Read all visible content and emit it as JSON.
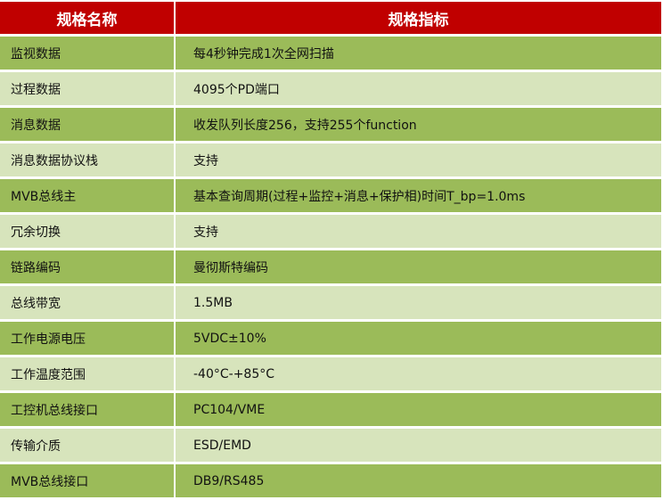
{
  "header": {
    "col1": "规格名称",
    "col2": "规格指标"
  },
  "colors": {
    "header": "#C00000",
    "row_dark": "#9BBB59",
    "row_light": "#D7E4BC"
  },
  "rows": [
    {
      "name": "监视数据",
      "value": "每4秒钟完成1次全网扫描"
    },
    {
      "name": "过程数据",
      "value": "4095个PD端口"
    },
    {
      "name": "消息数据",
      "value": "收发队列长度256，支持255个function"
    },
    {
      "name": "消息数据协议栈",
      "value": "支持"
    },
    {
      "name": "MVB总线主",
      "value": "基本查询周期(过程+监控+消息+保护相)时间T_bp=1.0ms"
    },
    {
      "name": "冗余切换",
      "value": "支持"
    },
    {
      "name": "链路编码",
      "value": "曼彻斯特编码"
    },
    {
      "name": "总线带宽",
      "value": "1.5MB"
    },
    {
      "name": "工作电源电压",
      "value": "5VDC±10%"
    },
    {
      "name": "工作温度范围",
      "value": "-40°C-+85°C"
    },
    {
      "name": "工控机总线接口",
      "value": "PC104/VME"
    },
    {
      "name": "传输介质",
      "value": "ESD/EMD"
    },
    {
      "name": "MVB总线接口",
      "value": "DB9/RS485"
    }
  ]
}
